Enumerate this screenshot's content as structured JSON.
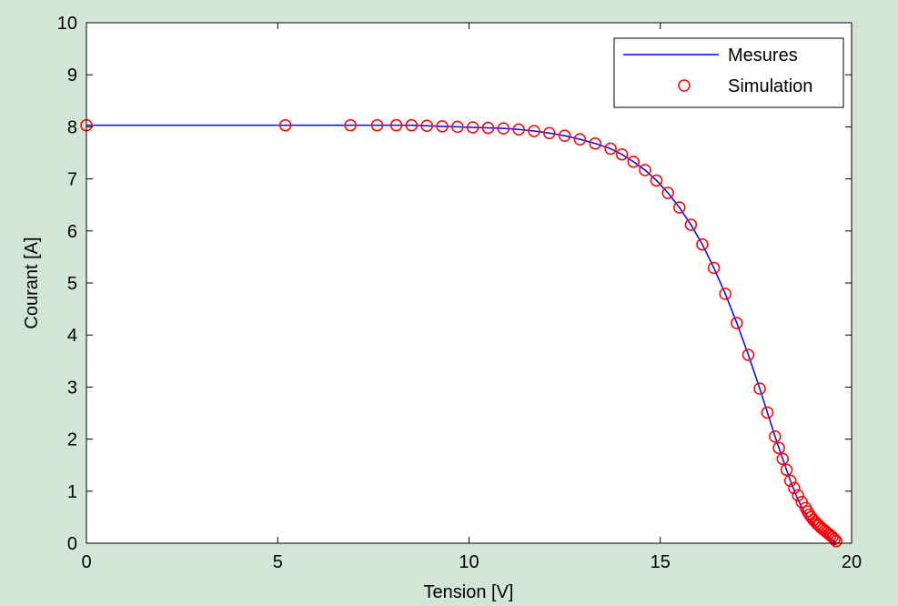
{
  "figure": {
    "background": "#d3e5d6"
  },
  "chart_data": {
    "type": "line",
    "title": "",
    "xlabel": "Tension [V]",
    "ylabel": "Courant [A]",
    "xlim": [
      0,
      20
    ],
    "ylim": [
      0,
      10
    ],
    "xticks": [
      0,
      5,
      10,
      15,
      20
    ],
    "yticks": [
      0,
      1,
      2,
      3,
      4,
      5,
      6,
      7,
      8,
      9,
      10
    ],
    "grid": false,
    "legend_position": "top-right",
    "series": [
      {
        "name": "Mesures",
        "style": "line",
        "color": "#0000ff",
        "x": [
          0,
          5.2,
          6.9,
          7.6,
          8.1,
          8.5,
          8.9,
          9.3,
          9.7,
          10.1,
          10.5,
          10.9,
          11.3,
          11.7,
          12.1,
          12.5,
          12.9,
          13.3,
          13.7,
          14.0,
          14.3,
          14.6,
          14.9,
          15.2,
          15.5,
          15.8,
          16.1,
          16.4,
          16.7,
          17.0,
          17.3,
          17.6,
          17.8,
          18.0,
          18.2,
          18.4,
          18.55,
          18.7,
          18.85,
          19.0,
          19.1,
          19.2,
          19.3,
          19.4,
          19.5,
          19.6
        ],
        "y": [
          8.03,
          8.03,
          8.03,
          8.03,
          8.03,
          8.03,
          8.02,
          8.01,
          8.0,
          7.99,
          7.98,
          7.97,
          7.95,
          7.92,
          7.88,
          7.83,
          7.76,
          7.68,
          7.58,
          7.47,
          7.33,
          7.17,
          6.97,
          6.73,
          6.45,
          6.12,
          5.74,
          5.29,
          4.79,
          4.23,
          3.62,
          2.97,
          2.51,
          2.05,
          1.62,
          1.2,
          0.92,
          0.68,
          0.5,
          0.37,
          0.3,
          0.24,
          0.18,
          0.12,
          0.06,
          0.02
        ]
      },
      {
        "name": "Simulation",
        "style": "markers",
        "marker": "circle",
        "color": "#ff0000",
        "x": [
          0,
          5.2,
          6.9,
          7.6,
          8.1,
          8.5,
          8.9,
          9.3,
          9.7,
          10.1,
          10.5,
          10.9,
          11.3,
          11.7,
          12.1,
          12.5,
          12.9,
          13.3,
          13.7,
          14.0,
          14.3,
          14.6,
          14.9,
          15.2,
          15.5,
          15.8,
          16.1,
          16.4,
          16.7,
          17.0,
          17.3,
          17.6,
          17.8,
          18.0,
          18.1,
          18.2,
          18.3,
          18.4,
          18.5,
          18.6,
          18.7,
          18.8,
          18.85,
          18.9,
          18.95,
          19.0,
          19.05,
          19.1,
          19.15,
          19.2,
          19.25,
          19.3,
          19.35,
          19.4,
          19.45,
          19.5,
          19.55,
          19.6
        ],
        "y": [
          8.03,
          8.03,
          8.03,
          8.03,
          8.03,
          8.03,
          8.02,
          8.01,
          8.0,
          7.99,
          7.98,
          7.97,
          7.95,
          7.92,
          7.88,
          7.83,
          7.76,
          7.68,
          7.58,
          7.47,
          7.33,
          7.17,
          6.97,
          6.73,
          6.45,
          6.12,
          5.74,
          5.29,
          4.79,
          4.23,
          3.62,
          2.97,
          2.51,
          2.05,
          1.83,
          1.62,
          1.41,
          1.2,
          1.06,
          0.92,
          0.79,
          0.68,
          0.61,
          0.55,
          0.5,
          0.45,
          0.41,
          0.37,
          0.34,
          0.3,
          0.27,
          0.24,
          0.21,
          0.18,
          0.15,
          0.12,
          0.08,
          0.04
        ]
      }
    ]
  }
}
